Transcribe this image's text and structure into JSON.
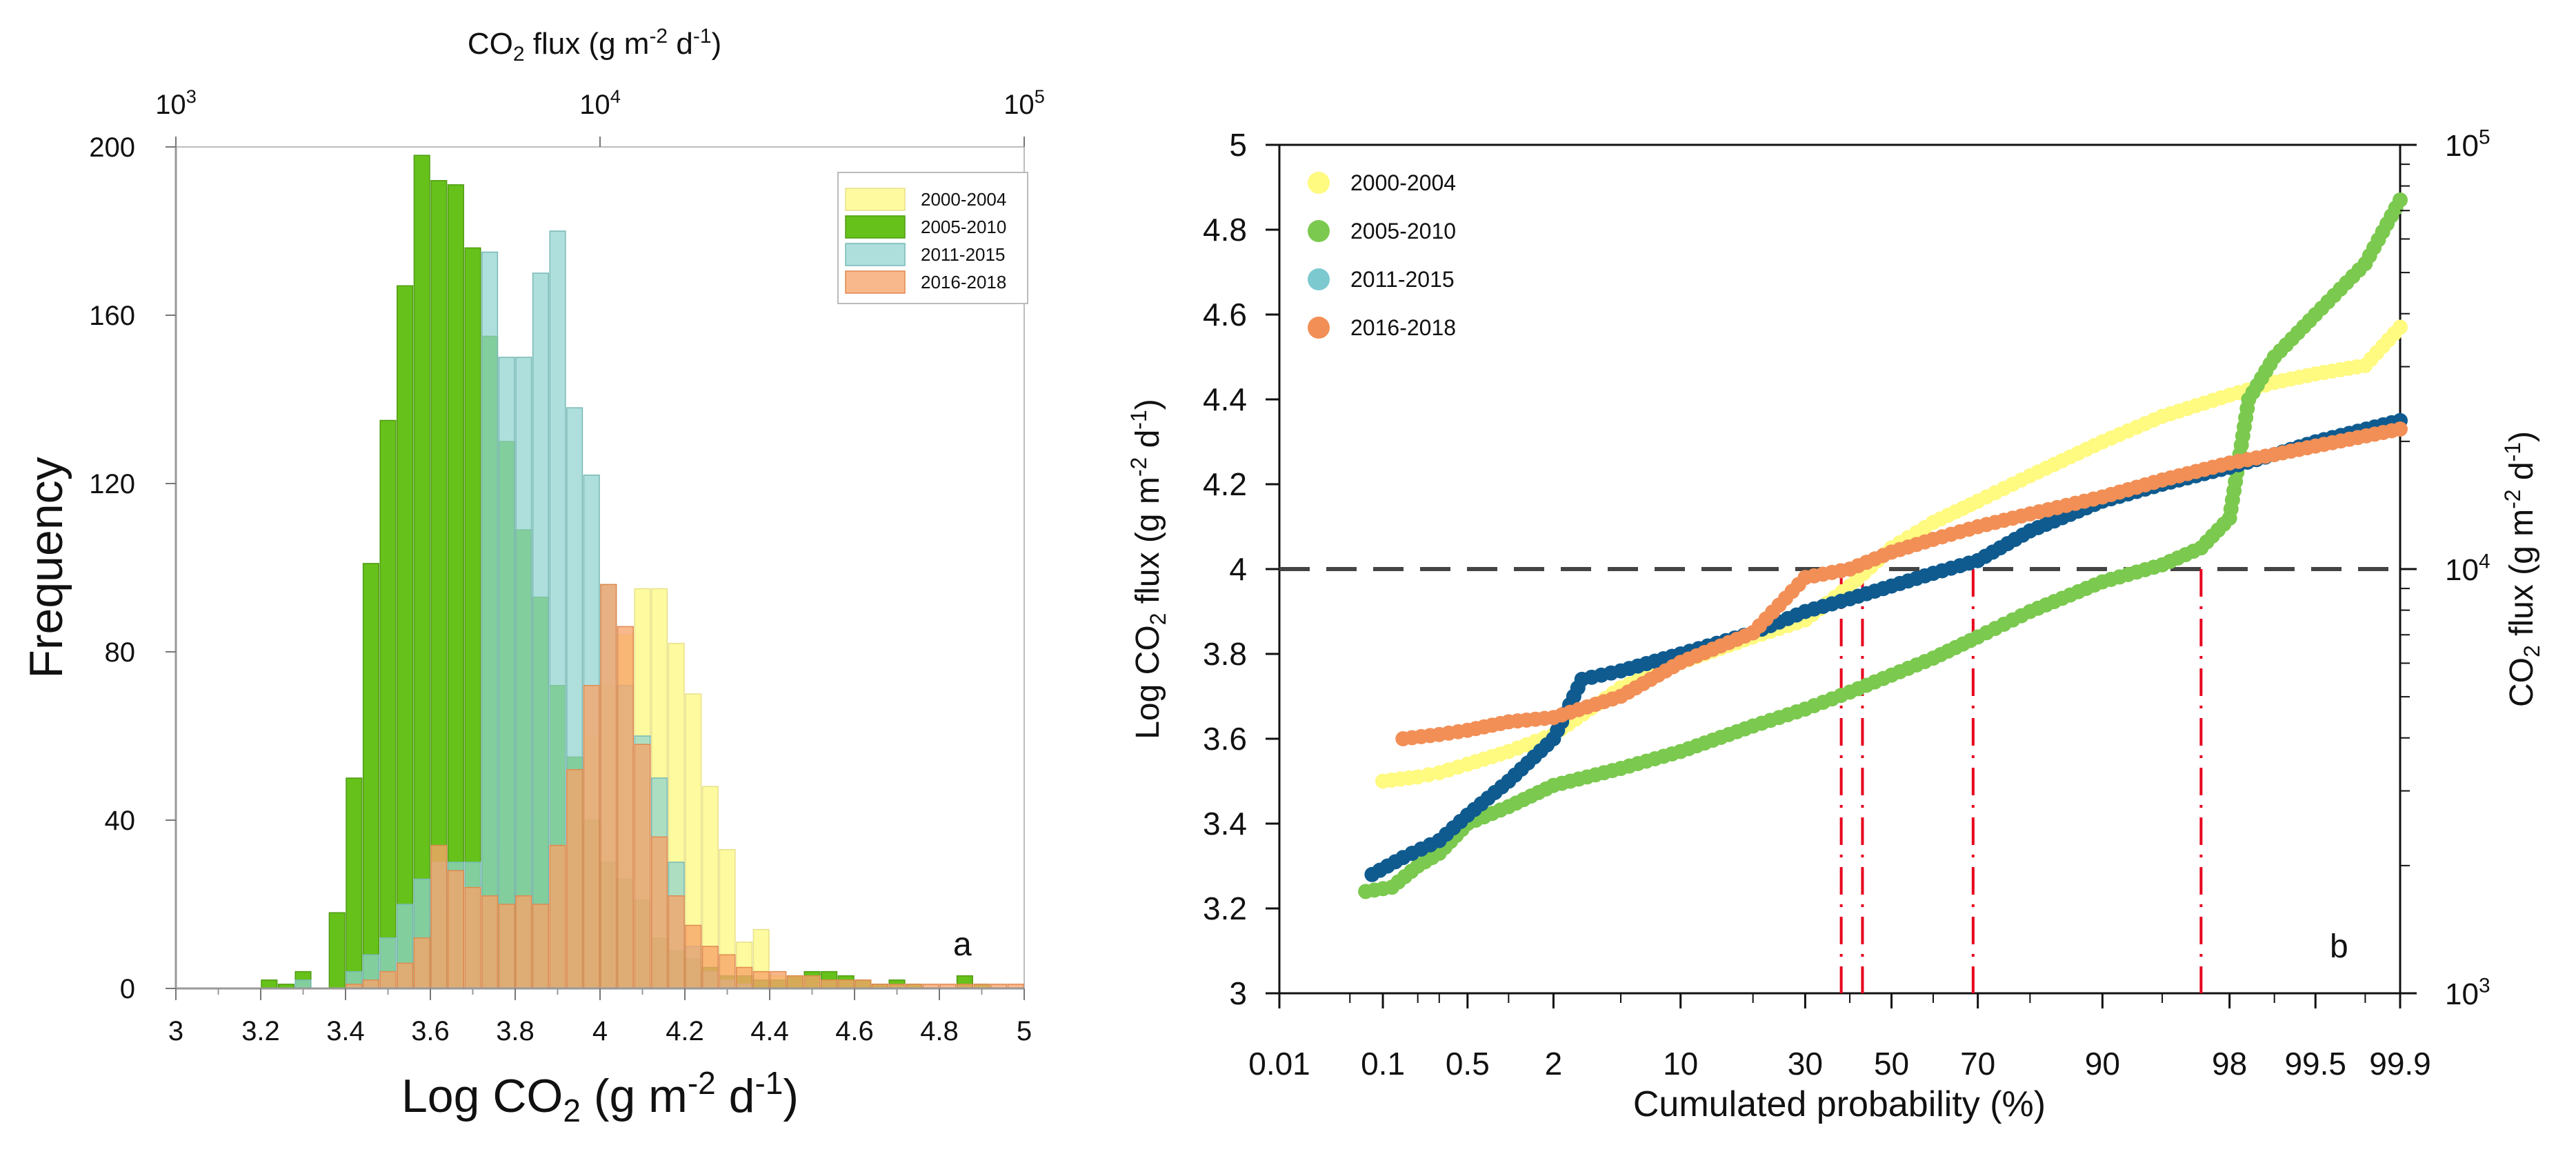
{
  "colors": {
    "y2000": "#fdf98e",
    "y2005": "#66c11a",
    "y2011": "#8fd3d0",
    "y2016": "#f7a46a",
    "dot2000": "#fffa80",
    "dot2005": "#7bc94e",
    "dot2011": "#0f5b8f",
    "dot2016": "#f28f56",
    "legend_dot2011": "#7cc9d0",
    "threshold": "#444444",
    "guide": "#e8001c"
  },
  "chart_data": [
    {
      "panel": "a",
      "type": "bar",
      "panel_label": "a",
      "xlabel_main": "Log CO",
      "xlabel_sub": "2",
      "xlabel_unit_pre": " (g m",
      "xlabel_unit_exp1": "-2",
      "xlabel_unit_mid": " d",
      "xlabel_unit_exp2": "-1",
      "xlabel_unit_post": ")",
      "ylabel": "Frequency",
      "top_axis_label": {
        "pre": "CO",
        "sub": "2",
        "unit_pre": " flux (g m",
        "exp1": "-2",
        "mid": " d",
        "exp2": "-1",
        "post": ")"
      },
      "top_ticks": [
        {
          "value": 3,
          "base": "10",
          "exp": "3"
        },
        {
          "value": 4,
          "base": "10",
          "exp": "4"
        },
        {
          "value": 5,
          "base": "10",
          "exp": "5"
        }
      ],
      "xlim": [
        3,
        5
      ],
      "ylim": [
        0,
        200
      ],
      "xticks": [
        "3",
        "3.2",
        "3.4",
        "3.6",
        "3.8",
        "4",
        "4.2",
        "4.4",
        "4.6",
        "4.8",
        "5"
      ],
      "xtick_values": [
        3,
        3.2,
        3.4,
        3.6,
        3.8,
        4,
        4.2,
        4.4,
        4.6,
        4.8,
        5
      ],
      "yticks": [
        "0",
        "40",
        "80",
        "120",
        "160",
        "200"
      ],
      "ytick_values": [
        0,
        40,
        80,
        120,
        160,
        200
      ],
      "bin_width": 0.04,
      "legend": [
        "2000-2004",
        "2005-2010",
        "2011-2015",
        "2016-2018"
      ],
      "series": [
        {
          "name": "2000-2004",
          "color_key": "y2000",
          "bins": [
            3.4,
            3.44,
            3.48,
            3.52,
            3.56,
            3.6,
            3.64,
            3.68,
            3.72,
            3.76,
            3.8,
            3.84,
            3.88,
            3.92,
            3.96,
            4,
            4.04,
            4.08,
            4.12,
            4.16,
            4.2,
            4.24,
            4.28,
            4.32,
            4.36,
            4.4,
            4.44,
            4.48
          ],
          "values": [
            2,
            4,
            6,
            10,
            14,
            18,
            22,
            26,
            30,
            34,
            38,
            42,
            46,
            50,
            60,
            72,
            84,
            95,
            95,
            82,
            70,
            48,
            33,
            11,
            14,
            3,
            1,
            1
          ]
        },
        {
          "name": "2005-2010",
          "color_key": "y2005",
          "bins": [
            3.2,
            3.24,
            3.28,
            3.36,
            3.4,
            3.44,
            3.48,
            3.52,
            3.56,
            3.6,
            3.64,
            3.68,
            3.72,
            3.76,
            3.8,
            3.84,
            3.88,
            3.92,
            3.96,
            4,
            4.04,
            4.08,
            4.12,
            4.16,
            4.2,
            4.24,
            4.28,
            4.32,
            4.36,
            4.4,
            4.44,
            4.48,
            4.52,
            4.56,
            4.6,
            4.64,
            4.68,
            4.72,
            4.84,
            4.88
          ],
          "values": [
            2,
            1,
            4,
            18,
            50,
            101,
            135,
            167,
            198,
            192,
            191,
            176,
            155,
            130,
            109,
            93,
            72,
            55,
            40,
            30,
            26,
            21,
            12,
            9,
            7,
            5,
            3,
            3,
            2,
            2,
            3,
            4,
            4,
            3,
            2,
            1,
            2,
            1,
            3,
            1
          ]
        },
        {
          "name": "2011-2015",
          "color_key": "y2011",
          "bins": [
            3.28,
            3.4,
            3.44,
            3.48,
            3.52,
            3.56,
            3.6,
            3.64,
            3.68,
            3.72,
            3.76,
            3.8,
            3.84,
            3.88,
            3.92,
            3.96,
            4,
            4.04,
            4.08,
            4.12,
            4.16,
            4.2,
            4.24,
            4.28,
            4.32
          ],
          "values": [
            2,
            4,
            8,
            12,
            20,
            26,
            30,
            30,
            30,
            175,
            150,
            150,
            170,
            180,
            138,
            122,
            96,
            72,
            60,
            50,
            30,
            10,
            4,
            2,
            1
          ]
        },
        {
          "name": "2016-2018",
          "color_key": "y2016",
          "bins": [
            3.4,
            3.44,
            3.48,
            3.52,
            3.56,
            3.6,
            3.64,
            3.68,
            3.72,
            3.76,
            3.8,
            3.84,
            3.88,
            3.92,
            3.96,
            4,
            4.04,
            4.08,
            4.12,
            4.16,
            4.2,
            4.24,
            4.28,
            4.32,
            4.36,
            4.4,
            4.44,
            4.48,
            4.52,
            4.56,
            4.6,
            4.64,
            4.68,
            4.72,
            4.76,
            4.8,
            4.84,
            4.88,
            4.92,
            4.96
          ],
          "values": [
            1,
            2,
            4,
            6,
            12,
            34,
            28,
            24,
            22,
            20,
            22,
            20,
            34,
            52,
            72,
            96,
            86,
            58,
            36,
            22,
            15,
            10,
            8,
            5,
            4,
            4,
            3,
            3,
            2,
            2,
            2,
            1,
            1,
            1,
            1,
            1,
            1,
            1,
            1,
            1
          ]
        }
      ]
    },
    {
      "panel": "b",
      "type": "scatter",
      "panel_label": "b",
      "xlabel": "Cumulated probability (%)",
      "ylabel_left": {
        "pre": "Log CO",
        "sub": "2",
        "unit_pre": " flux (g m",
        "exp1": "-2",
        "mid": " d",
        "exp2": "-1",
        "post": ")"
      },
      "ylabel_right": {
        "pre": "CO",
        "sub": "2",
        "unit_pre": " flux (g m",
        "exp1": "-2",
        "mid": " d",
        "exp2": "-1",
        "post": ")"
      },
      "ylim": [
        3,
        5
      ],
      "yticks": [
        "3",
        "3.2",
        "3.4",
        "3.6",
        "3.8",
        "4",
        "4.2",
        "4.4",
        "4.6",
        "4.8",
        "5"
      ],
      "ytick_values": [
        3,
        3.2,
        3.4,
        3.6,
        3.8,
        4,
        4.2,
        4.4,
        4.6,
        4.8,
        5
      ],
      "right_ticks": [
        {
          "value": 3,
          "base": "10",
          "exp": "3"
        },
        {
          "value": 4,
          "base": "10",
          "exp": "4"
        },
        {
          "value": 5,
          "base": "10",
          "exp": "5"
        }
      ],
      "xlim_prob": [
        0.01,
        99.9
      ],
      "xticks": [
        "0.01",
        "0.1",
        "0.5",
        "2",
        "10",
        "30",
        "50",
        "70",
        "90",
        "98",
        "99.5",
        "99.9"
      ],
      "xtick_values": [
        0.01,
        0.1,
        0.5,
        2,
        10,
        30,
        50,
        70,
        90,
        98,
        99.5,
        99.9
      ],
      "minor_xtick_values": [
        0.05,
        0.2,
        0.3,
        1,
        5,
        20,
        40,
        60,
        80,
        95,
        99,
        99.8
      ],
      "threshold_y": 4,
      "guide_probabilities": [
        38,
        43,
        69,
        97
      ],
      "legend": [
        "2000-2004",
        "2005-2010",
        "2011-2015",
        "2016-2018"
      ],
      "series": [
        {
          "name": "2000-2004",
          "color_key": "dot2000",
          "points": [
            [
              0.1,
              3.5
            ],
            [
              0.2,
              3.51
            ],
            [
              0.3,
              3.52
            ],
            [
              0.5,
              3.54
            ],
            [
              1,
              3.57
            ],
            [
              2,
              3.61
            ],
            [
              5,
              3.72
            ],
            [
              10,
              3.78
            ],
            [
              20,
              3.84
            ],
            [
              30,
              3.88
            ],
            [
              40,
              3.96
            ],
            [
              50,
              4.05
            ],
            [
              60,
              4.11
            ],
            [
              70,
              4.16
            ],
            [
              80,
              4.22
            ],
            [
              90,
              4.3
            ],
            [
              95,
              4.36
            ],
            [
              98,
              4.41
            ],
            [
              99,
              4.44
            ],
            [
              99.5,
              4.46
            ],
            [
              99.8,
              4.48
            ],
            [
              99.9,
              4.57
            ]
          ]
        },
        {
          "name": "2005-2010",
          "color_key": "dot2005",
          "points": [
            [
              0.07,
              3.24
            ],
            [
              0.12,
              3.25
            ],
            [
              0.2,
              3.3
            ],
            [
              0.3,
              3.33
            ],
            [
              0.5,
              3.4
            ],
            [
              1,
              3.44
            ],
            [
              2,
              3.49
            ],
            [
              5,
              3.53
            ],
            [
              10,
              3.57
            ],
            [
              20,
              3.63
            ],
            [
              30,
              3.67
            ],
            [
              40,
              3.71
            ],
            [
              50,
              3.75
            ],
            [
              60,
              3.79
            ],
            [
              70,
              3.84
            ],
            [
              80,
              3.9
            ],
            [
              90,
              3.97
            ],
            [
              95,
              4.01
            ],
            [
              97,
              4.05
            ],
            [
              98,
              4.12
            ],
            [
              98.5,
              4.4
            ],
            [
              99,
              4.5
            ],
            [
              99.5,
              4.6
            ],
            [
              99.8,
              4.72
            ],
            [
              99.9,
              4.87
            ]
          ]
        },
        {
          "name": "2011-2015",
          "color_key": "dot2011",
          "points": [
            [
              0.08,
              3.28
            ],
            [
              0.15,
              3.32
            ],
            [
              0.3,
              3.36
            ],
            [
              0.5,
              3.42
            ],
            [
              1,
              3.5
            ],
            [
              2,
              3.6
            ],
            [
              3,
              3.74
            ],
            [
              5,
              3.76
            ],
            [
              10,
              3.8
            ],
            [
              20,
              3.85
            ],
            [
              30,
              3.9
            ],
            [
              40,
              3.93
            ],
            [
              50,
              3.96
            ],
            [
              60,
              3.99
            ],
            [
              70,
              4.02
            ],
            [
              80,
              4.09
            ],
            [
              90,
              4.16
            ],
            [
              95,
              4.2
            ],
            [
              98,
              4.24
            ],
            [
              99,
              4.27
            ],
            [
              99.5,
              4.3
            ],
            [
              99.9,
              4.35
            ]
          ]
        },
        {
          "name": "2016-2018",
          "color_key": "dot2016",
          "points": [
            [
              0.15,
              3.6
            ],
            [
              0.3,
              3.61
            ],
            [
              0.5,
              3.62
            ],
            [
              1,
              3.64
            ],
            [
              2,
              3.65
            ],
            [
              5,
              3.7
            ],
            [
              10,
              3.78
            ],
            [
              20,
              3.85
            ],
            [
              30,
              3.98
            ],
            [
              40,
              4.0
            ],
            [
              50,
              4.04
            ],
            [
              60,
              4.07
            ],
            [
              70,
              4.1
            ],
            [
              80,
              4.13
            ],
            [
              90,
              4.17
            ],
            [
              95,
              4.21
            ],
            [
              98,
              4.25
            ],
            [
              99,
              4.27
            ],
            [
              99.5,
              4.29
            ],
            [
              99.9,
              4.33
            ]
          ]
        }
      ]
    }
  ]
}
